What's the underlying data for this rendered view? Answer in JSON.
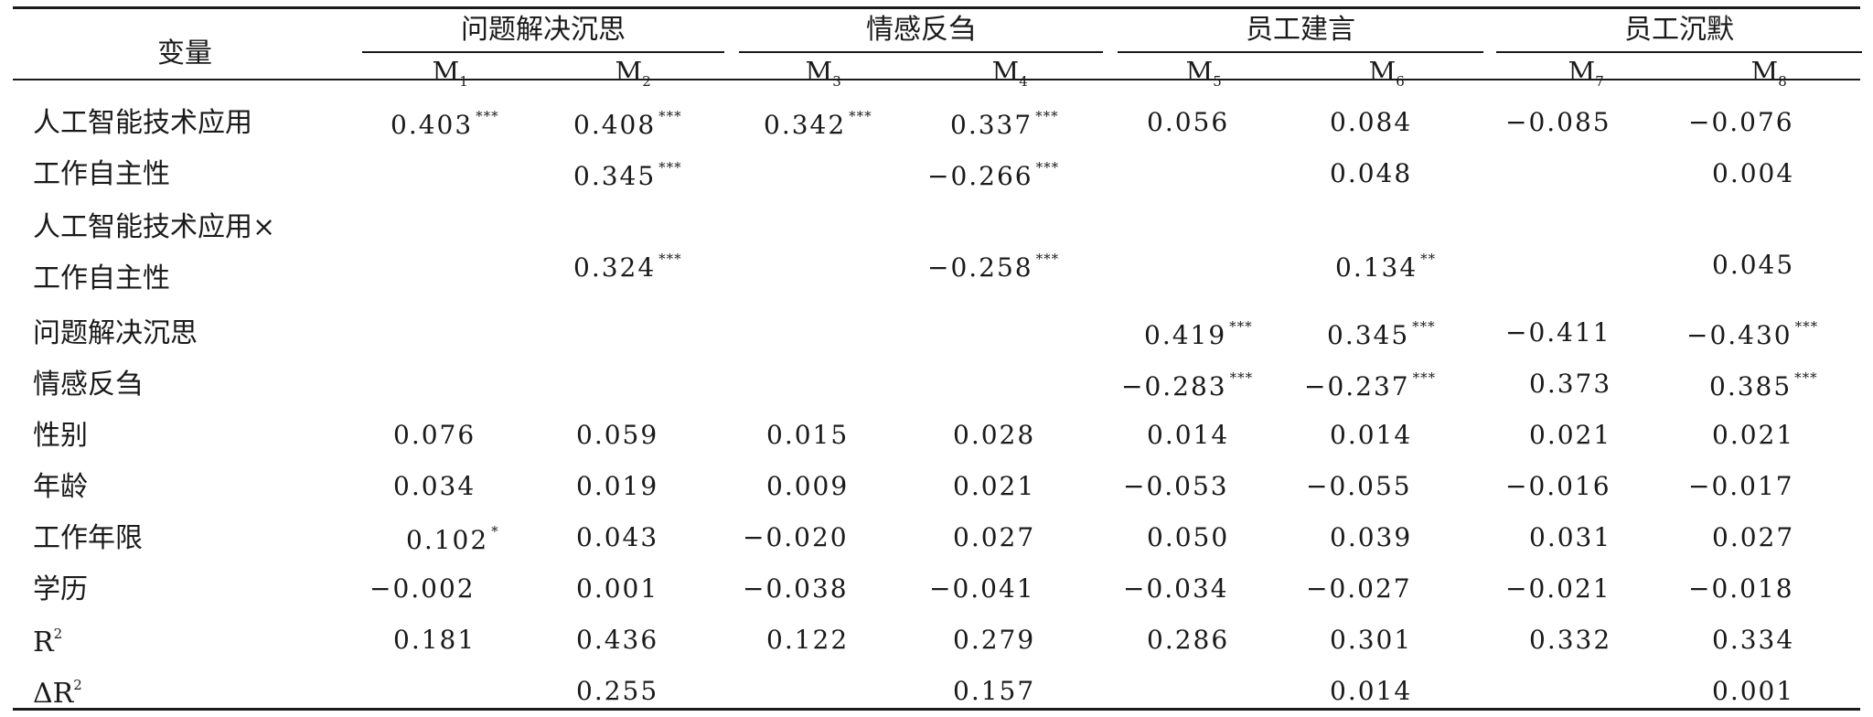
{
  "table": {
    "corner_label": "变量",
    "groups": [
      "问题解决沉思",
      "情感反刍",
      "员工建言",
      "员工沉默"
    ],
    "models": [
      {
        "base": "M",
        "sub": "1"
      },
      {
        "base": "M",
        "sub": "2"
      },
      {
        "base": "M",
        "sub": "3"
      },
      {
        "base": "M",
        "sub": "4"
      },
      {
        "base": "M",
        "sub": "5"
      },
      {
        "base": "M",
        "sub": "6"
      },
      {
        "base": "M",
        "sub": "7"
      },
      {
        "base": "M",
        "sub": "8"
      }
    ],
    "rows": [
      {
        "label": "人工智能技术应用",
        "cells": [
          {
            "v": "0.403",
            "s": "***"
          },
          {
            "v": "0.408",
            "s": "***"
          },
          {
            "v": "0.342",
            "s": "***"
          },
          {
            "v": "0.337",
            "s": "***"
          },
          {
            "v": "0.056",
            "s": ""
          },
          {
            "v": "0.084",
            "s": ""
          },
          {
            "v": "−0.085",
            "s": ""
          },
          {
            "v": "−0.076",
            "s": ""
          }
        ]
      },
      {
        "label": "工作自主性",
        "cells": [
          {
            "v": "",
            "s": ""
          },
          {
            "v": "0.345",
            "s": "***"
          },
          {
            "v": "",
            "s": ""
          },
          {
            "v": "−0.266",
            "s": "***"
          },
          {
            "v": "",
            "s": ""
          },
          {
            "v": "0.048",
            "s": ""
          },
          {
            "v": "",
            "s": ""
          },
          {
            "v": "0.004",
            "s": ""
          }
        ]
      },
      {
        "label": "人工智能技术应用×",
        "label2": "工作自主性",
        "cells": [
          {
            "v": "",
            "s": ""
          },
          {
            "v": "0.324",
            "s": "***"
          },
          {
            "v": "",
            "s": ""
          },
          {
            "v": "−0.258",
            "s": "***"
          },
          {
            "v": "",
            "s": ""
          },
          {
            "v": "0.134",
            "s": "**"
          },
          {
            "v": "",
            "s": ""
          },
          {
            "v": "0.045",
            "s": ""
          }
        ]
      },
      {
        "label": "问题解决沉思",
        "cells": [
          {
            "v": "",
            "s": ""
          },
          {
            "v": "",
            "s": ""
          },
          {
            "v": "",
            "s": ""
          },
          {
            "v": "",
            "s": ""
          },
          {
            "v": "0.419",
            "s": "***"
          },
          {
            "v": "0.345",
            "s": "***"
          },
          {
            "v": "−0.411",
            "s": ""
          },
          {
            "v": "−0.430",
            "s": "***"
          }
        ]
      },
      {
        "label": "情感反刍",
        "cells": [
          {
            "v": "",
            "s": ""
          },
          {
            "v": "",
            "s": ""
          },
          {
            "v": "",
            "s": ""
          },
          {
            "v": "",
            "s": ""
          },
          {
            "v": "−0.283",
            "s": "***"
          },
          {
            "v": "−0.237",
            "s": "***"
          },
          {
            "v": "0.373",
            "s": ""
          },
          {
            "v": "0.385",
            "s": "***"
          }
        ]
      },
      {
        "label": "性别",
        "cells": [
          {
            "v": "0.076",
            "s": ""
          },
          {
            "v": "0.059",
            "s": ""
          },
          {
            "v": "0.015",
            "s": ""
          },
          {
            "v": "0.028",
            "s": ""
          },
          {
            "v": "0.014",
            "s": ""
          },
          {
            "v": "0.014",
            "s": ""
          },
          {
            "v": "0.021",
            "s": ""
          },
          {
            "v": "0.021",
            "s": ""
          }
        ]
      },
      {
        "label": "年龄",
        "cells": [
          {
            "v": "0.034",
            "s": ""
          },
          {
            "v": "0.019",
            "s": ""
          },
          {
            "v": "0.009",
            "s": ""
          },
          {
            "v": "0.021",
            "s": ""
          },
          {
            "v": "−0.053",
            "s": ""
          },
          {
            "v": "−0.055",
            "s": ""
          },
          {
            "v": "−0.016",
            "s": ""
          },
          {
            "v": "−0.017",
            "s": ""
          }
        ]
      },
      {
        "label": "工作年限",
        "cells": [
          {
            "v": "0.102",
            "s": "*"
          },
          {
            "v": "0.043",
            "s": ""
          },
          {
            "v": "−0.020",
            "s": ""
          },
          {
            "v": "0.027",
            "s": ""
          },
          {
            "v": "0.050",
            "s": ""
          },
          {
            "v": "0.039",
            "s": ""
          },
          {
            "v": "0.031",
            "s": ""
          },
          {
            "v": "0.027",
            "s": ""
          }
        ]
      },
      {
        "label": "学历",
        "cells": [
          {
            "v": "−0.002",
            "s": ""
          },
          {
            "v": "0.001",
            "s": ""
          },
          {
            "v": "−0.038",
            "s": ""
          },
          {
            "v": "−0.041",
            "s": ""
          },
          {
            "v": "−0.034",
            "s": ""
          },
          {
            "v": "−0.027",
            "s": ""
          },
          {
            "v": "−0.021",
            "s": ""
          },
          {
            "v": "−0.018",
            "s": ""
          }
        ]
      },
      {
        "label": "R",
        "label_sup": "2",
        "cells": [
          {
            "v": "0.181",
            "s": ""
          },
          {
            "v": "0.436",
            "s": ""
          },
          {
            "v": "0.122",
            "s": ""
          },
          {
            "v": "0.279",
            "s": ""
          },
          {
            "v": "0.286",
            "s": ""
          },
          {
            "v": "0.301",
            "s": ""
          },
          {
            "v": "0.332",
            "s": ""
          },
          {
            "v": "0.334",
            "s": ""
          }
        ]
      },
      {
        "label": "ΔR",
        "label_sup": "2",
        "cells": [
          {
            "v": "",
            "s": ""
          },
          {
            "v": "0.255",
            "s": ""
          },
          {
            "v": "",
            "s": ""
          },
          {
            "v": "0.157",
            "s": ""
          },
          {
            "v": "",
            "s": ""
          },
          {
            "v": "0.014",
            "s": ""
          },
          {
            "v": "",
            "s": ""
          },
          {
            "v": "0.001",
            "s": ""
          }
        ]
      }
    ]
  }
}
